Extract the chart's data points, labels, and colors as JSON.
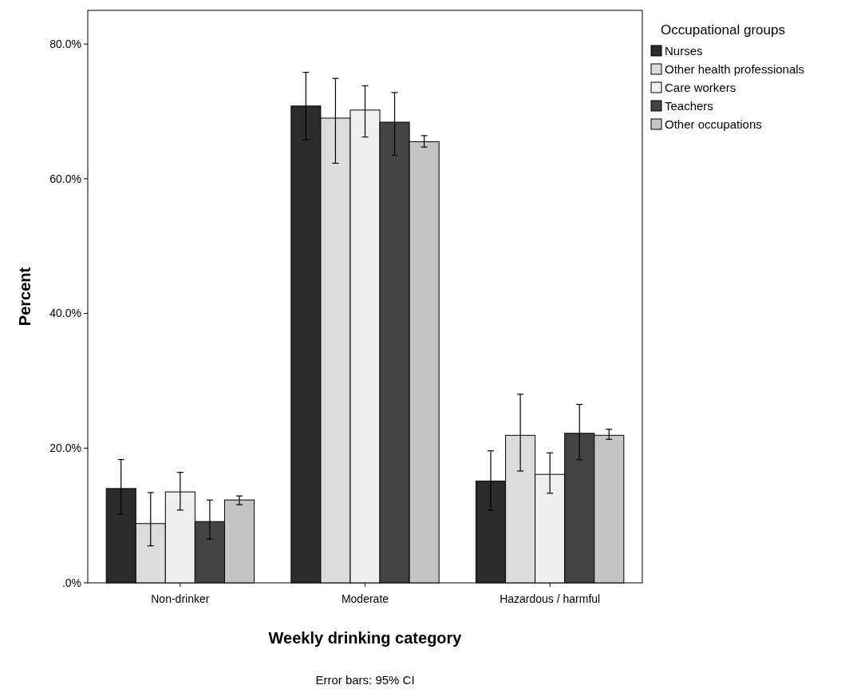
{
  "chart_data": {
    "type": "bar",
    "xlabel": "Weekly drinking category",
    "ylabel": "Percent",
    "legend_title": "Occupational groups",
    "legend": "top right",
    "categories": [
      "Non-drinker",
      "Moderate",
      "Hazardous / harmful"
    ],
    "ylim": [
      0,
      85
    ],
    "yticks": [
      {
        "value": 0,
        "label": ".0%"
      },
      {
        "value": 20,
        "label": "20.0%"
      },
      {
        "value": 40,
        "label": "40.0%"
      },
      {
        "value": 60,
        "label": "60.0%"
      },
      {
        "value": 80,
        "label": "80.0%"
      }
    ],
    "series": [
      {
        "name": "Nurses",
        "color": "#2b2b2b",
        "values": [
          14.0,
          70.8,
          15.1
        ],
        "errors": [
          [
            10.2,
            18.3
          ],
          [
            65.8,
            75.8
          ],
          [
            10.8,
            19.6
          ]
        ]
      },
      {
        "name": "Other health professionals",
        "color": "#dcdcdc",
        "values": [
          8.8,
          69.0,
          21.9
        ],
        "errors": [
          [
            5.5,
            13.4
          ],
          [
            62.3,
            74.9
          ],
          [
            16.6,
            28.0
          ]
        ]
      },
      {
        "name": "Care workers",
        "color": "#f0f0f0",
        "values": [
          13.5,
          70.2,
          16.1
        ],
        "errors": [
          [
            10.8,
            16.4
          ],
          [
            66.2,
            73.8
          ],
          [
            13.3,
            19.3
          ]
        ]
      },
      {
        "name": "Teachers",
        "color": "#444444",
        "values": [
          9.1,
          68.4,
          22.2
        ],
        "errors": [
          [
            6.5,
            12.3
          ],
          [
            63.5,
            72.8
          ],
          [
            18.3,
            26.5
          ]
        ]
      },
      {
        "name": "Other occupations",
        "color": "#c4c4c4",
        "values": [
          12.3,
          65.5,
          21.9
        ],
        "errors": [
          [
            11.6,
            12.9
          ],
          [
            64.7,
            66.4
          ],
          [
            21.3,
            22.8
          ]
        ]
      }
    ],
    "annotations": [
      "Error bars: 95% CI"
    ]
  }
}
